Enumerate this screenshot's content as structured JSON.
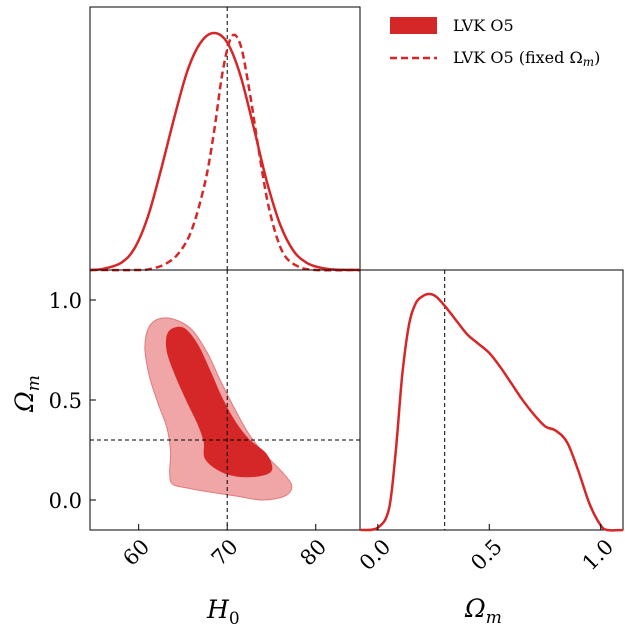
{
  "chart_data": {
    "type": "corner",
    "colors": {
      "main": "#d62728",
      "inner": "#d62728",
      "outer": "#f0a5a6",
      "outerEdge": "#e07b7c"
    },
    "legend": {
      "placement": "top-right",
      "entries": [
        {
          "label": "LVK O5",
          "style": "filled"
        },
        {
          "label": "LVK O5 (fixed Ωm)",
          "style": "dashed"
        }
      ]
    },
    "truths": {
      "H0": 70,
      "Om": 0.3
    },
    "axes": {
      "H0": {
        "label": "H0",
        "range": [
          54.5,
          85
        ],
        "ticks": [
          60,
          70,
          80
        ],
        "tick_labels": [
          "60",
          "70",
          "80"
        ]
      },
      "Om": {
        "label": "Ωm",
        "range": [
          -0.15,
          1.15
        ],
        "ticks": [
          0.0,
          0.5,
          1.0
        ],
        "tick_labels": [
          "0.0",
          "0.5",
          "1.0"
        ]
      },
      "Om_x": {
        "range": [
          -0.08,
          1.1
        ],
        "ticks": [
          0.0,
          0.5,
          1.0
        ],
        "tick_labels": [
          "0.0",
          "0.5",
          "1.0"
        ]
      }
    },
    "h0_marginal": {
      "solid": {
        "x": [
          54.5,
          56,
          58,
          59.5,
          61,
          62.5,
          64,
          65.5,
          67,
          68.5,
          70,
          71.5,
          73,
          74.5,
          76,
          77.5,
          79,
          80.5,
          82,
          85
        ],
        "y": [
          0.0,
          0.005,
          0.03,
          0.09,
          0.22,
          0.42,
          0.64,
          0.84,
          0.96,
          1.0,
          0.96,
          0.82,
          0.6,
          0.37,
          0.19,
          0.08,
          0.03,
          0.01,
          0.002,
          0.0
        ]
      },
      "dashed": {
        "x": [
          54.5,
          60,
          61.5,
          63,
          64.5,
          66,
          67.5,
          68.5,
          69.5,
          70.5,
          71.5,
          72.5,
          73.5,
          74.5,
          75.5,
          76.5,
          78,
          80,
          85
        ],
        "y": [
          0.0,
          0.0,
          0.006,
          0.025,
          0.07,
          0.17,
          0.37,
          0.58,
          0.84,
          0.985,
          0.95,
          0.76,
          0.52,
          0.3,
          0.15,
          0.06,
          0.015,
          0.0,
          0.0
        ]
      }
    },
    "om_marginal": {
      "x": [
        -0.08,
        0.0,
        0.05,
        0.08,
        0.11,
        0.14,
        0.17,
        0.2,
        0.23,
        0.26,
        0.3,
        0.35,
        0.4,
        0.45,
        0.5,
        0.55,
        0.6,
        0.65,
        0.7,
        0.75,
        0.8,
        0.85,
        0.9,
        0.95,
        1.0,
        1.03,
        1.1
      ],
      "y": [
        0.0,
        0.01,
        0.09,
        0.33,
        0.66,
        0.87,
        0.96,
        0.99,
        1.0,
        0.99,
        0.95,
        0.89,
        0.83,
        0.79,
        0.75,
        0.69,
        0.62,
        0.55,
        0.49,
        0.44,
        0.42,
        0.37,
        0.25,
        0.11,
        0.02,
        0.0,
        0.0
      ]
    },
    "contours": {
      "outer": {
        "points": [
          [
            63.8,
            0.08
          ],
          [
            65.5,
            0.06
          ],
          [
            68,
            0.04
          ],
          [
            71,
            0.02
          ],
          [
            74,
            0.0
          ],
          [
            76.5,
            0.02
          ],
          [
            77.3,
            0.07
          ],
          [
            76.2,
            0.14
          ],
          [
            74,
            0.24
          ],
          [
            72.3,
            0.34
          ],
          [
            70.8,
            0.46
          ],
          [
            69.2,
            0.6
          ],
          [
            67.7,
            0.74
          ],
          [
            65.8,
            0.86
          ],
          [
            63.3,
            0.91
          ],
          [
            61.4,
            0.88
          ],
          [
            60.7,
            0.77
          ],
          [
            61.2,
            0.62
          ],
          [
            62.3,
            0.47
          ],
          [
            63.2,
            0.36
          ],
          [
            63.6,
            0.24
          ],
          [
            63.5,
            0.14
          ]
        ]
      },
      "inner": {
        "points": [
          [
            67.5,
            0.21
          ],
          [
            69,
            0.15
          ],
          [
            71,
            0.12
          ],
          [
            73.5,
            0.12
          ],
          [
            75,
            0.15
          ],
          [
            74.4,
            0.23
          ],
          [
            72.5,
            0.3
          ],
          [
            70.9,
            0.39
          ],
          [
            69.4,
            0.51
          ],
          [
            68,
            0.65
          ],
          [
            66.6,
            0.78
          ],
          [
            65,
            0.86
          ],
          [
            63.4,
            0.84
          ],
          [
            63.2,
            0.75
          ],
          [
            64.1,
            0.63
          ],
          [
            65.4,
            0.5
          ],
          [
            66.7,
            0.38
          ],
          [
            67.4,
            0.29
          ]
        ]
      }
    }
  }
}
